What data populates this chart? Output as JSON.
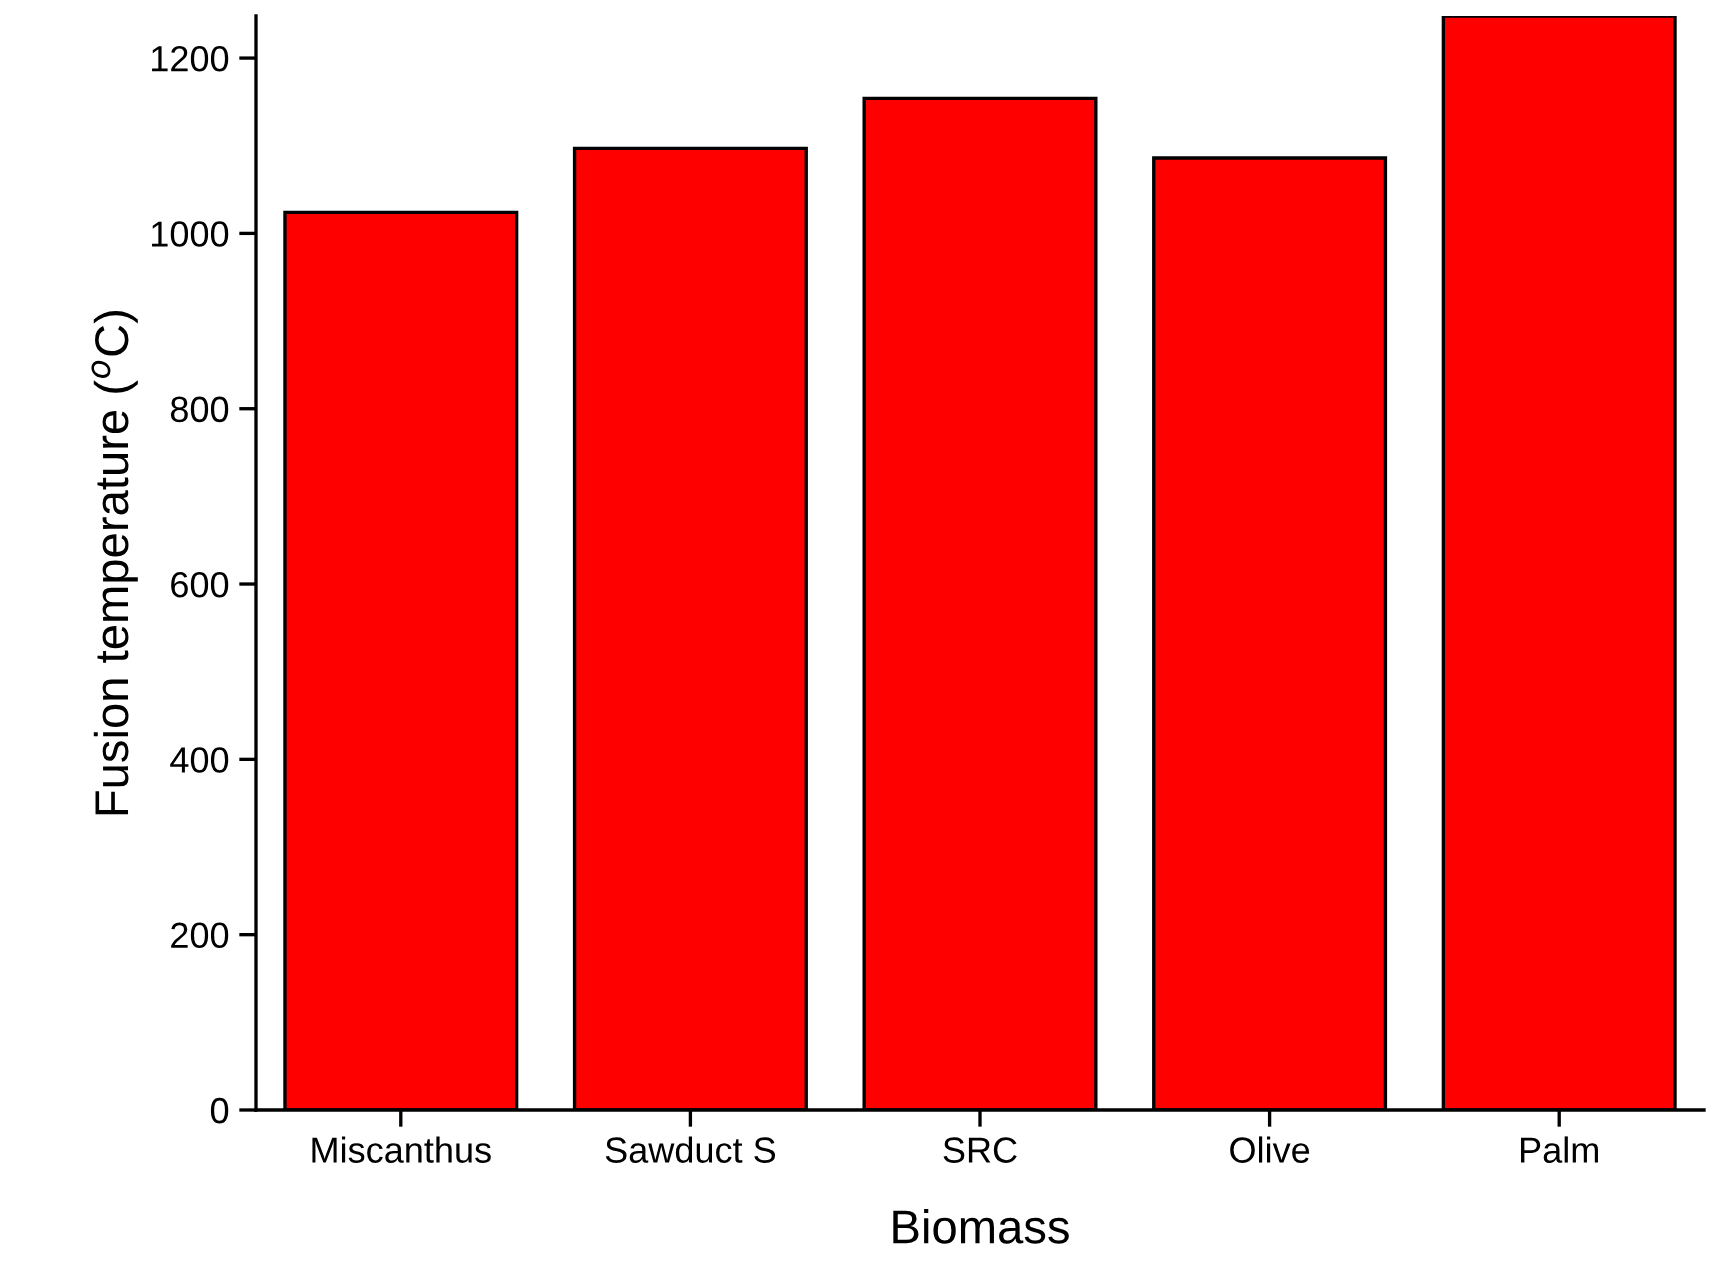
{
  "chart_data": {
    "type": "bar",
    "xlabel": "Biomass",
    "ylabel": "Fusion temperature ($^{o}$C)",
    "categories": [
      "Miscanthus",
      "Sawduct S",
      "SRC",
      "Olive",
      "Palm"
    ],
    "values": [
      1024,
      1097,
      1154,
      1086,
      1248
    ],
    "color": "#ff0000",
    "ylim": [
      0,
      1248
    ],
    "yticks": [
      0,
      200,
      400,
      600,
      800,
      1000,
      1200
    ],
    "grid": false
  }
}
